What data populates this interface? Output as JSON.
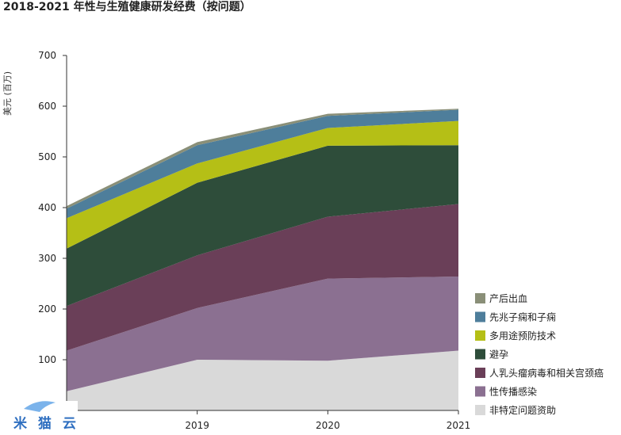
{
  "chart_data": {
    "type": "area",
    "stacked": true,
    "title": "2018-2021 年性与生殖健康研发经费（按问题）",
    "ylabel": "美元 (百万)",
    "xlabel": "",
    "x": [
      "2018",
      "2019",
      "2020",
      "2021"
    ],
    "x_tick_labels": [
      "2019",
      "2020",
      "2021"
    ],
    "ylim": [
      0,
      700
    ],
    "yticks": [
      100,
      200,
      300,
      400,
      500,
      600,
      700
    ],
    "legend_position": "bottom-right",
    "grid": false,
    "series": [
      {
        "name": "非特定问题资助",
        "color": "#d9d9d9",
        "values": [
          38,
          100,
          98,
          118
        ]
      },
      {
        "name": "性传播感染",
        "color": "#8b7091",
        "values": [
          80,
          102,
          162,
          146
        ]
      },
      {
        "name": "人乳头瘤病毒和相关宫颈癌",
        "color": "#6a3f58",
        "values": [
          88,
          104,
          122,
          143
        ]
      },
      {
        "name": "避孕",
        "color": "#2e4d3a",
        "values": [
          113,
          143,
          140,
          116
        ]
      },
      {
        "name": "多用途预防技术",
        "color": "#b5bf16",
        "values": [
          60,
          38,
          35,
          48
        ]
      },
      {
        "name": "先兆子痫和子痫",
        "color": "#4e7e9b",
        "values": [
          19,
          36,
          24,
          22
        ]
      },
      {
        "name": "产后出血",
        "color": "#8a8f78",
        "values": [
          5,
          6,
          4,
          2
        ]
      }
    ]
  },
  "watermark": {
    "text": "米  猫  云"
  }
}
